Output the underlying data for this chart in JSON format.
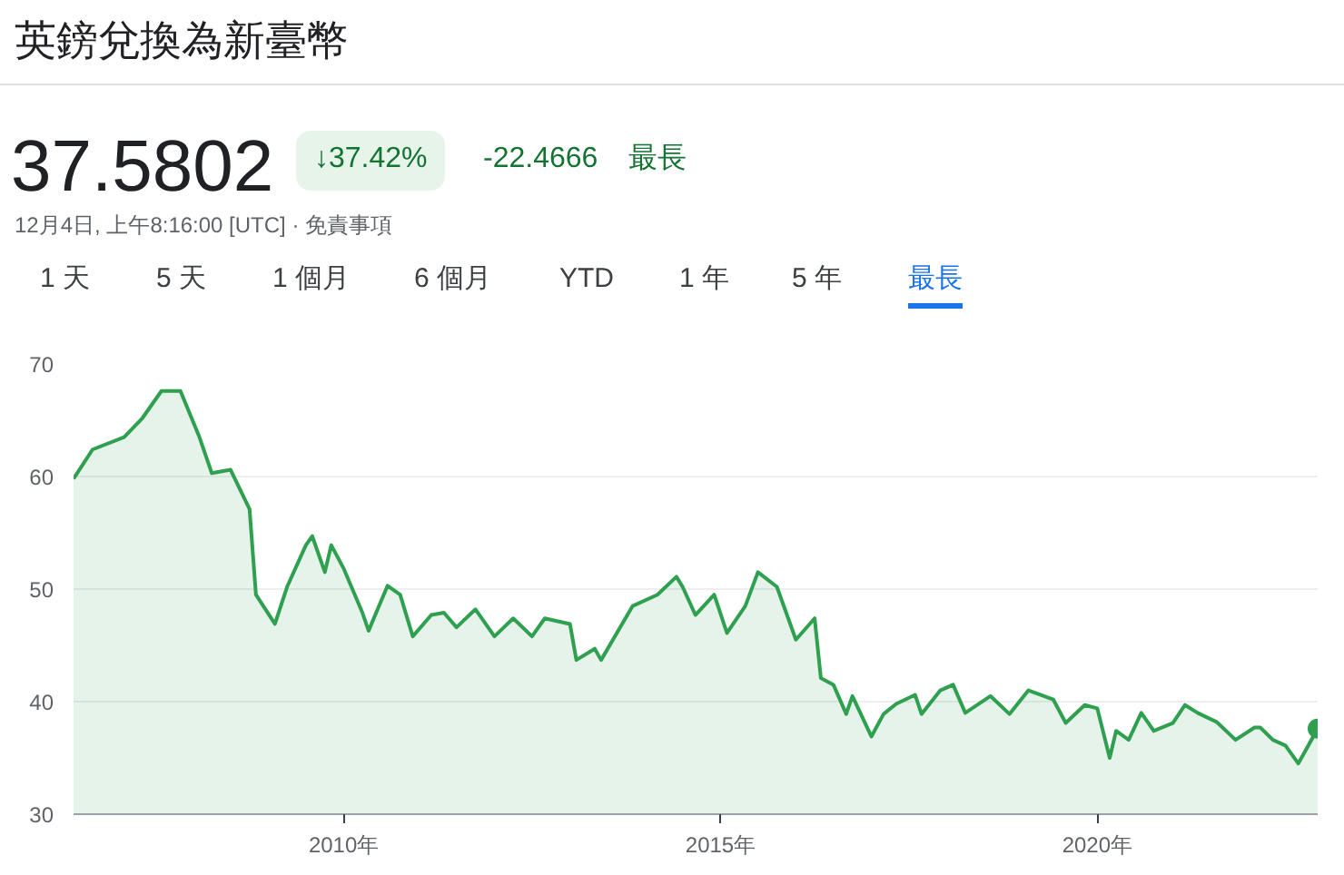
{
  "chart_data": {
    "type": "area",
    "title": "英鎊兌換為新臺幣",
    "annotations": [
      "37.5802",
      "↓37.42%",
      "-22.4666",
      "最長",
      "12月4日, 上午8:16:00 [UTC] · 免責事項",
      "1 天",
      "5 天",
      "1 個月",
      "6 個月",
      "YTD",
      "1 年",
      "5 年",
      "最長"
    ],
    "x": [
      "2006-06",
      "2006-09",
      "2007-02",
      "2007-05",
      "2007-08",
      "2007-11",
      "2008-02",
      "2008-04",
      "2008-07",
      "2008-10",
      "2008-11",
      "2009-02",
      "2009-04",
      "2009-07",
      "2009-08",
      "2009-10",
      "2009-11",
      "2010-01",
      "2010-04",
      "2010-05",
      "2010-08",
      "2010-10",
      "2010-12",
      "2011-03",
      "2011-05",
      "2011-07",
      "2011-10",
      "2012-01",
      "2012-04",
      "2012-07",
      "2012-09",
      "2013-01",
      "2013-02",
      "2013-05",
      "2013-06",
      "2013-11",
      "2014-03",
      "2014-06",
      "2014-07",
      "2014-09",
      "2014-12",
      "2015-02",
      "2015-05",
      "2015-07",
      "2015-10",
      "2016-01",
      "2016-04",
      "2016-05",
      "2016-07",
      "2016-09",
      "2016-10",
      "2017-01",
      "2017-03",
      "2017-05",
      "2017-08",
      "2017-09",
      "2017-12",
      "2018-02",
      "2018-04",
      "2018-08",
      "2018-11",
      "2019-02",
      "2019-06",
      "2019-08",
      "2019-11",
      "2020-01",
      "2020-03",
      "2020-04",
      "2020-06",
      "2020-08",
      "2020-10",
      "2021-01",
      "2021-03",
      "2021-05",
      "2021-08",
      "2021-11",
      "2022-02",
      "2022-03",
      "2022-05",
      "2022-07",
      "2022-09",
      "2022-12-04"
    ],
    "series": [
      {
        "color": "#2ea04f",
        "values": [
          59.8,
          62.4,
          63.5,
          65.2,
          67.6,
          67.6,
          63.5,
          60.3,
          60.6,
          57.1,
          49.5,
          46.9,
          50.2,
          53.9,
          54.7,
          51.5,
          53.9,
          51.8,
          47.9,
          46.3,
          50.3,
          49.5,
          45.8,
          47.7,
          47.9,
          46.6,
          48.2,
          45.8,
          47.4,
          45.8,
          47.4,
          46.9,
          43.7,
          44.7,
          43.7,
          48.5,
          49.5,
          51.1,
          50.2,
          47.7,
          49.5,
          46.1,
          48.5,
          51.5,
          50.2,
          45.5,
          47.4,
          42.1,
          41.5,
          38.9,
          40.5,
          36.9,
          38.9,
          39.8,
          40.6,
          38.9,
          41.0,
          41.5,
          39.0,
          40.5,
          38.9,
          41.0,
          40.2,
          38.1,
          39.7,
          39.4,
          35.0,
          37.4,
          36.6,
          39.0,
          37.4,
          38.1,
          39.7,
          39.0,
          38.2,
          36.6,
          37.7,
          37.7,
          36.6,
          36.1,
          34.5,
          37.6
        ]
      }
    ],
    "xlim": [
      "2006-06",
      "2022-12-04"
    ],
    "ylim": [
      30,
      70
    ],
    "yticks": [
      30,
      40,
      50,
      60,
      70
    ],
    "xticks": [
      {
        "value": "2010",
        "label": "2010年"
      },
      {
        "value": "2015",
        "label": "2015年"
      },
      {
        "value": "2020",
        "label": "2020年"
      }
    ],
    "grid": "y"
  }
}
